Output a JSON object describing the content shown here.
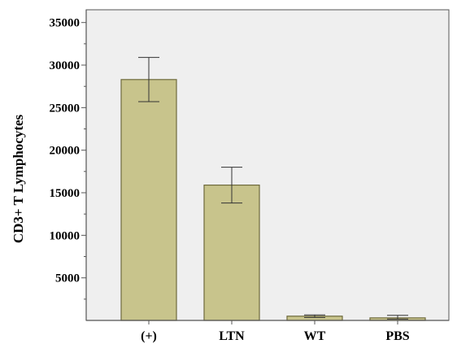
{
  "chart_data": {
    "type": "bar",
    "title": "",
    "xlabel": "",
    "ylabel": "CD3+ T Lymphocytes",
    "categories": [
      "(+)",
      "LTN",
      "WT",
      "PBS"
    ],
    "values": [
      28300,
      15900,
      500,
      300
    ],
    "error_low": [
      25700,
      13800,
      350,
      150
    ],
    "error_high": [
      30900,
      18000,
      650,
      600
    ],
    "yticks": [
      5000,
      10000,
      15000,
      20000,
      25000,
      30000,
      35000
    ],
    "ytick_labels": [
      "5000",
      "10000",
      "15000",
      "20000",
      "25000",
      "30000",
      "35000"
    ],
    "ylim": [
      0,
      36500
    ],
    "grid": false,
    "colors": {
      "bar_fill": "#c8c48c",
      "bar_stroke": "#6e6a3c",
      "plot_background": "#efefef",
      "axis": "#555555",
      "error_bar": "#333333"
    }
  }
}
